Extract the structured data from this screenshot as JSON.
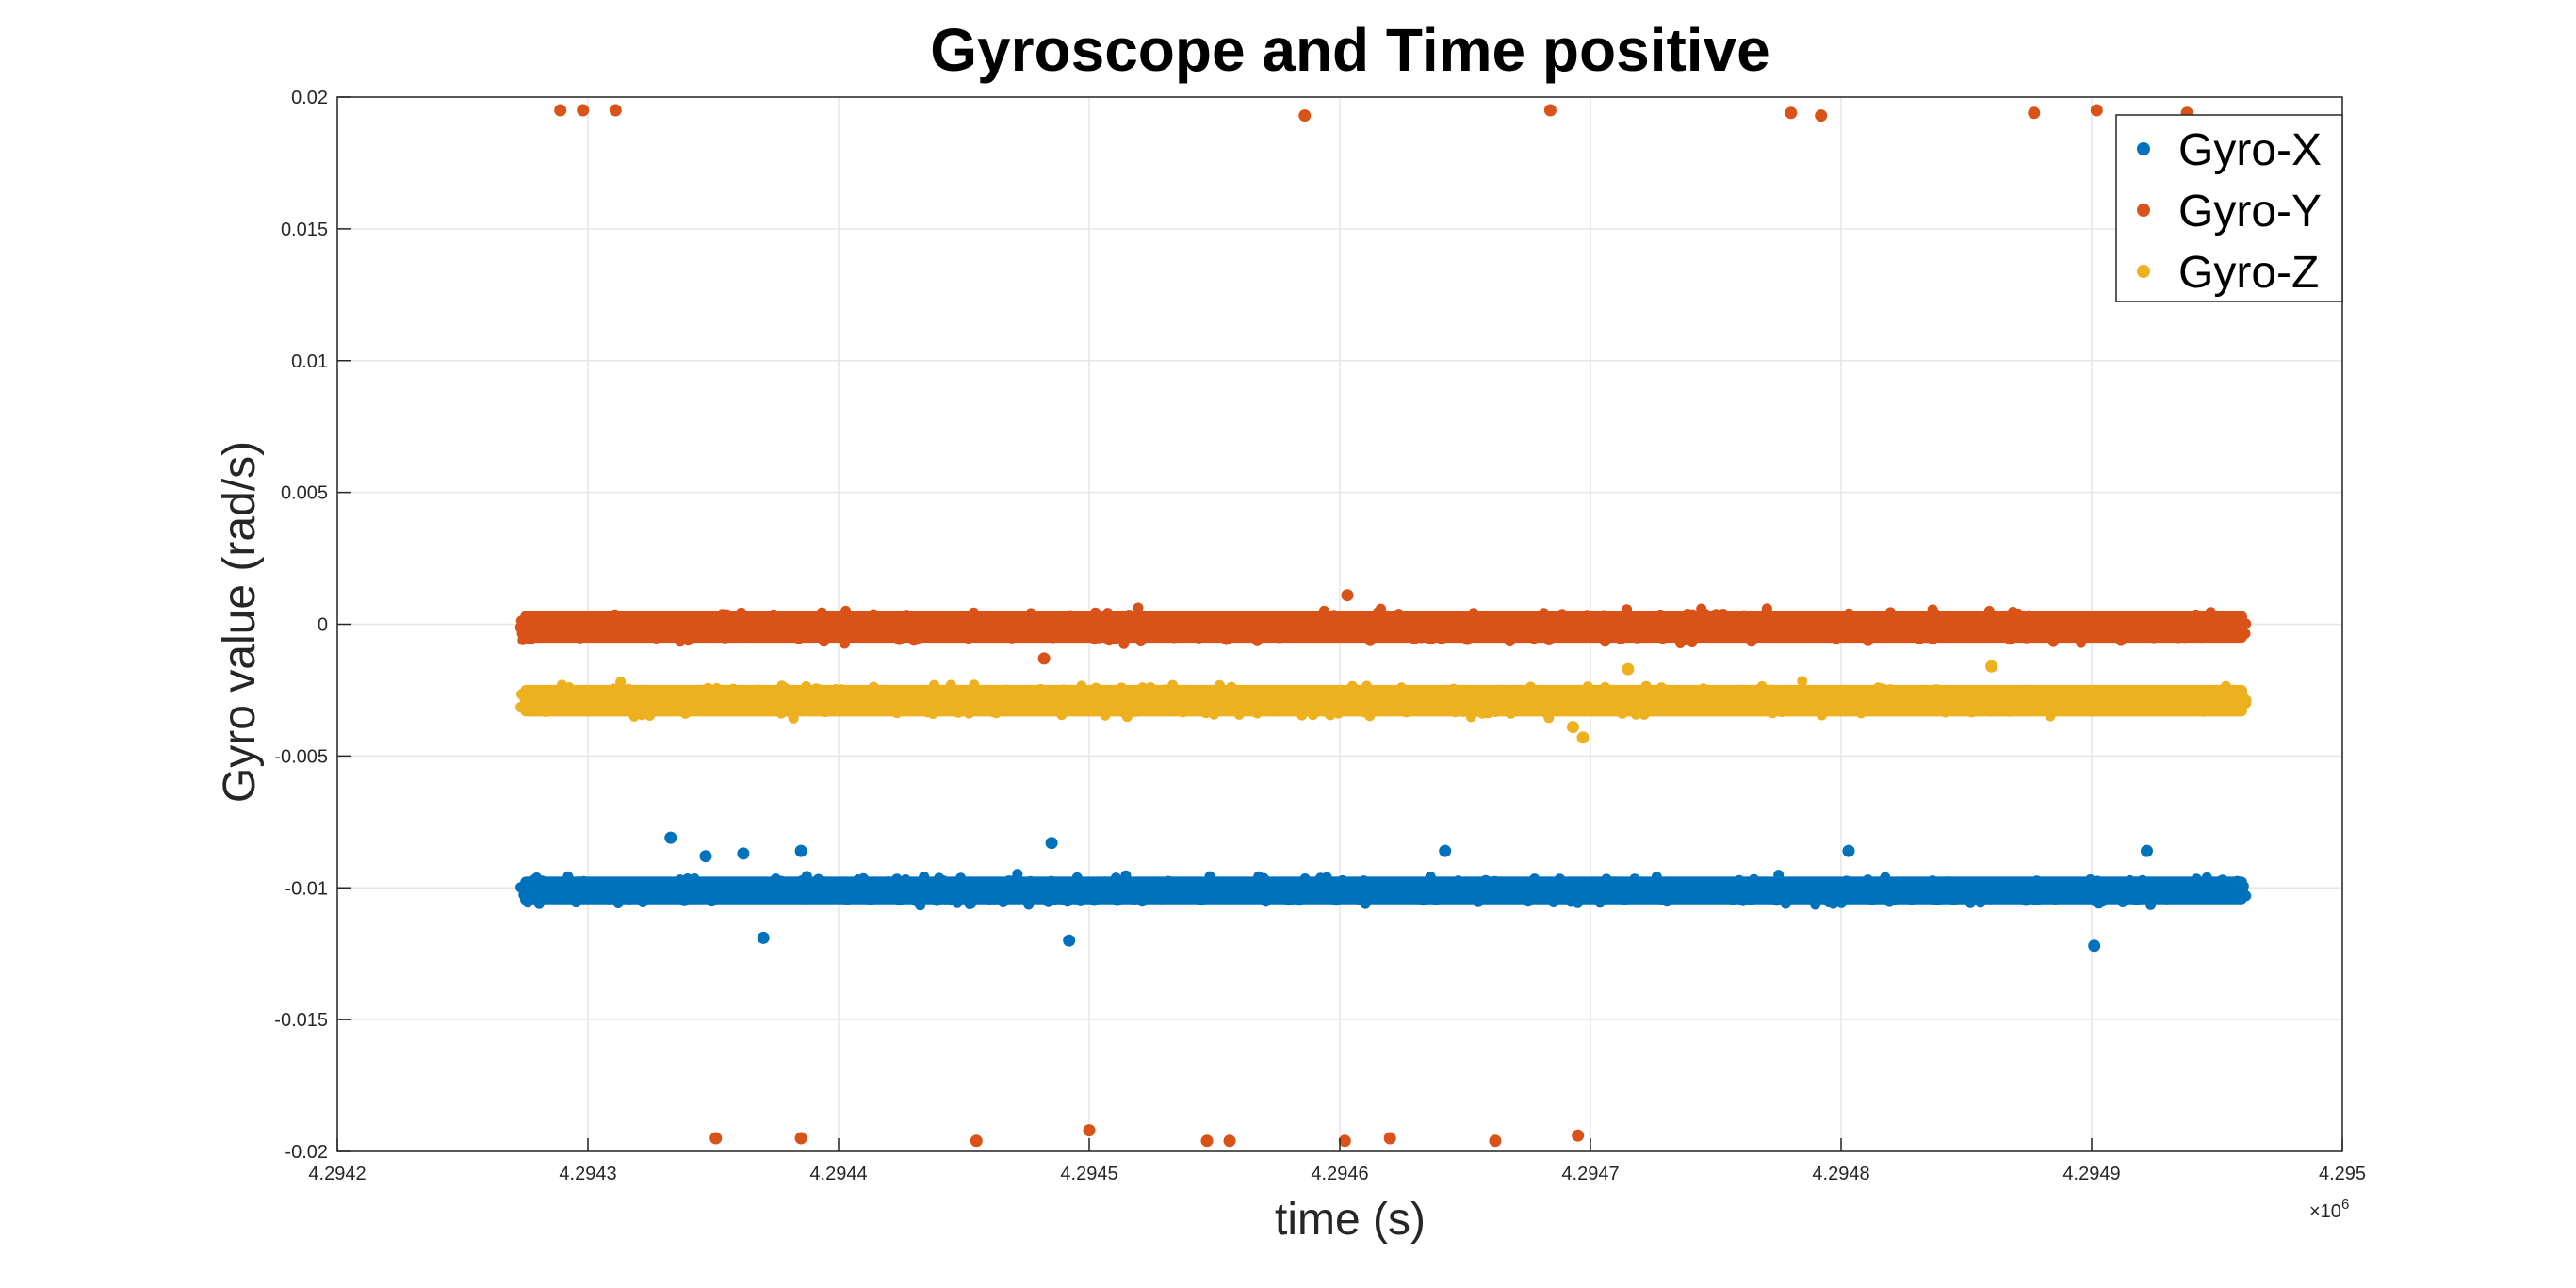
{
  "chart_data": {
    "type": "scatter",
    "title": "Gyroscope and Time positive",
    "xlabel": "time (s)",
    "ylabel": "Gyro value (rad/s)",
    "x_exponent_label": "×10",
    "x_exponent_power": "6",
    "xlim": [
      4294200,
      4295000
    ],
    "ylim": [
      -0.02,
      0.02
    ],
    "x_ticks": [
      4294200,
      4294300,
      4294400,
      4294500,
      4294600,
      4294700,
      4294800,
      4294900,
      4295000
    ],
    "x_tick_labels": [
      "4.2942",
      "4.2943",
      "4.2944",
      "4.2945",
      "4.2946",
      "4.2947",
      "4.2948",
      "4.2949",
      "4.295"
    ],
    "y_ticks": [
      0.02,
      0.015,
      0.01,
      0.005,
      0,
      -0.005,
      -0.01,
      -0.015,
      -0.02
    ],
    "y_tick_labels": [
      "0.02",
      "0.015",
      "0.01",
      "0.005",
      "0",
      "-0.005",
      "-0.01",
      "-0.015",
      "-0.02"
    ],
    "grid": true,
    "legend_position": "top-right",
    "x_range_of_data": [
      4294273,
      4294962
    ],
    "series": [
      {
        "name": "Gyro-X",
        "color": "#0072BD",
        "band": {
          "center": -0.0101,
          "halfwidth": 0.0007
        },
        "outliers": [
          {
            "x": 4294333,
            "y": -0.0081
          },
          {
            "x": 4294347,
            "y": -0.0088
          },
          {
            "x": 4294362,
            "y": -0.0087
          },
          {
            "x": 4294370,
            "y": -0.0119
          },
          {
            "x": 4294385,
            "y": -0.0086
          },
          {
            "x": 4294485,
            "y": -0.0083
          },
          {
            "x": 4294492,
            "y": -0.012
          },
          {
            "x": 4294642,
            "y": -0.0086
          },
          {
            "x": 4294803,
            "y": -0.0086
          },
          {
            "x": 4294922,
            "y": -0.0086
          },
          {
            "x": 4294901,
            "y": -0.0122
          }
        ]
      },
      {
        "name": "Gyro-Y",
        "color": "#D95319",
        "band": {
          "center": -0.0001,
          "halfwidth": 0.0008
        },
        "outliers": [
          {
            "x": 4294289,
            "y": 0.0195
          },
          {
            "x": 4294298,
            "y": 0.0195
          },
          {
            "x": 4294311,
            "y": 0.0195
          },
          {
            "x": 4294586,
            "y": 0.0193
          },
          {
            "x": 4294684,
            "y": 0.0195
          },
          {
            "x": 4294780,
            "y": 0.0194
          },
          {
            "x": 4294792,
            "y": 0.0193
          },
          {
            "x": 4294877,
            "y": 0.0194
          },
          {
            "x": 4294902,
            "y": 0.0195
          },
          {
            "x": 4294938,
            "y": 0.0194
          },
          {
            "x": 4294351,
            "y": -0.0195
          },
          {
            "x": 4294385,
            "y": -0.0195
          },
          {
            "x": 4294455,
            "y": -0.0196
          },
          {
            "x": 4294500,
            "y": -0.0192
          },
          {
            "x": 4294547,
            "y": -0.0196
          },
          {
            "x": 4294556,
            "y": -0.0196
          },
          {
            "x": 4294602,
            "y": -0.0196
          },
          {
            "x": 4294620,
            "y": -0.0195
          },
          {
            "x": 4294662,
            "y": -0.0196
          },
          {
            "x": 4294695,
            "y": -0.0194
          },
          {
            "x": 4294603,
            "y": 0.0011
          },
          {
            "x": 4294482,
            "y": -0.0013
          }
        ]
      },
      {
        "name": "Gyro-Z",
        "color": "#EDB120",
        "band": {
          "center": -0.0029,
          "halfwidth": 0.0008
        },
        "outliers": [
          {
            "x": 4294697,
            "y": -0.0043
          },
          {
            "x": 4294693,
            "y": -0.0039
          },
          {
            "x": 4294860,
            "y": -0.0016
          },
          {
            "x": 4294715,
            "y": -0.0017
          }
        ]
      }
    ]
  }
}
